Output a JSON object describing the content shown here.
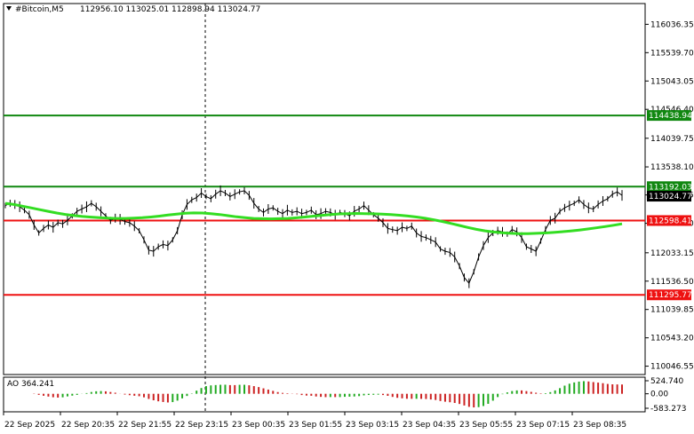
{
  "header": {
    "title": "#Bitcoin,M5",
    "ohlc": "112956.10 113025.01 112898.94 113024.77"
  },
  "chart_data": {
    "type": "line",
    "symbol": "#Bitcoin",
    "timeframe": "M5",
    "y_ticks": [
      "116036.35",
      "115539.70",
      "115043.05",
      "114546.40",
      "114039.75",
      "113538.10",
      "113046.45",
      "112549.80",
      "112033.15",
      "111536.50",
      "111039.85",
      "110543.20",
      "110046.55"
    ],
    "ylim": [
      109900,
      116400
    ],
    "x_labels": [
      "22 Sep 2025",
      "22 Sep 20:35",
      "22 Sep 21:55",
      "22 Sep 23:15",
      "23 Sep 00:35",
      "23 Sep 01:55",
      "23 Sep 03:15",
      "23 Sep 04:35",
      "23 Sep 05:55",
      "23 Sep 07:15",
      "23 Sep 08:35"
    ],
    "current_price": {
      "label": "113024.77",
      "value": 113024.77
    },
    "levels": [
      {
        "label": "114438.94",
        "value": 114438.94,
        "color": "#118811"
      },
      {
        "label": "113192.03",
        "value": 113192.03,
        "color": "#118811"
      },
      {
        "label": "112598.41",
        "value": 112598.41,
        "color": "#ee1111"
      },
      {
        "label": "111295.77",
        "value": 111295.77,
        "color": "#ee1111"
      }
    ],
    "price_series": [
      112860,
      112900,
      112880,
      112840,
      112780,
      112700,
      112520,
      112380,
      112460,
      112520,
      112480,
      112560,
      112540,
      112600,
      112680,
      112760,
      112800,
      112840,
      112900,
      112840,
      112760,
      112680,
      112600,
      112640,
      112620,
      112580,
      112560,
      112500,
      112420,
      112260,
      112080,
      112060,
      112140,
      112180,
      112160,
      112260,
      112420,
      112700,
      112880,
      112960,
      113000,
      113080,
      113020,
      112980,
      113060,
      113120,
      113080,
      113020,
      113060,
      113100,
      113120,
      113040,
      112900,
      112800,
      112740,
      112800,
      112820,
      112760,
      112720,
      112780,
      112740,
      112760,
      112720,
      112740,
      112780,
      112700,
      112720,
      112760,
      112740,
      112700,
      112740,
      112720,
      112680,
      112760,
      112800,
      112860,
      112780,
      112700,
      112640,
      112560,
      112460,
      112440,
      112420,
      112480,
      112460,
      112500,
      112380,
      112320,
      112300,
      112260,
      112220,
      112100,
      112060,
      112040,
      111960,
      111800,
      111600,
      111500,
      111700,
      111960,
      112160,
      112300,
      112380,
      112420,
      112400,
      112360,
      112440,
      112400,
      112300,
      112140,
      112100,
      112060,
      112240,
      112440,
      112600,
      112640,
      112760,
      112820,
      112860,
      112900,
      112960,
      112880,
      112820,
      112800,
      112880,
      112940,
      112980,
      113060,
      113100,
      113040
    ],
    "ma_series": [
      112900,
      112880,
      112850,
      112820,
      112790,
      112760,
      112730,
      112705,
      112685,
      112670,
      112658,
      112648,
      112640,
      112636,
      112636,
      112640,
      112648,
      112660,
      112676,
      112694,
      112712,
      112726,
      112732,
      112730,
      112720,
      112704,
      112684,
      112664,
      112648,
      112636,
      112630,
      112628,
      112630,
      112636,
      112646,
      112660,
      112676,
      112690,
      112704,
      112714,
      112720,
      112722,
      112720,
      112716,
      112710,
      112702,
      112692,
      112678,
      112660,
      112638,
      112612,
      112582,
      112548,
      112512,
      112476,
      112444,
      112418,
      112398,
      112384,
      112374,
      112370,
      112370,
      112374,
      112380,
      112390,
      112402,
      112416,
      112432,
      112450,
      112470,
      112492,
      112516,
      112540
    ],
    "ao": {
      "label": "AO 364.241",
      "ticks": [
        "524.740",
        "0.00",
        "-583.273"
      ],
      "ylim": [
        -583.273,
        524.74
      ]
    }
  }
}
